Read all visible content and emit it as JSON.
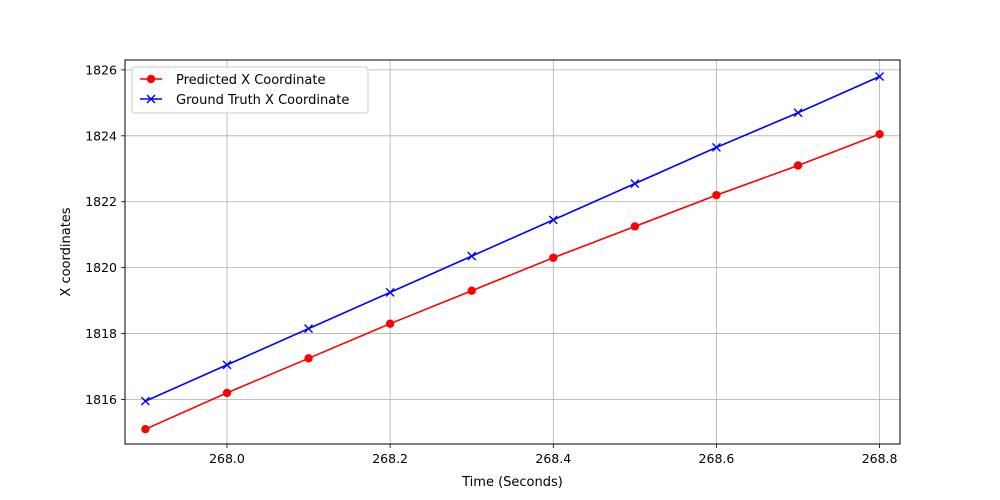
{
  "chart_data": {
    "type": "line",
    "title": "",
    "xlabel": "Time (Seconds)",
    "ylabel": "X coordinates",
    "xlim": [
      267.875,
      268.825
    ],
    "ylim": [
      1814.65,
      1826.3
    ],
    "xticks": [
      268.0,
      268.2,
      268.4,
      268.6,
      268.8
    ],
    "xtick_labels": [
      "268.0",
      "268.2",
      "268.4",
      "268.6",
      "268.8"
    ],
    "yticks": [
      1816,
      1818,
      1820,
      1822,
      1824,
      1826
    ],
    "ytick_labels": [
      "1816",
      "1818",
      "1820",
      "1822",
      "1824",
      "1826"
    ],
    "grid": true,
    "legend_position": "top-left",
    "x": [
      267.9,
      268.0,
      268.1,
      268.2,
      268.3,
      268.4,
      268.5,
      268.6,
      268.7,
      268.8
    ],
    "series": [
      {
        "name": "Predicted X Coordinate",
        "color": "#ff0000",
        "marker": "circle",
        "values": [
          1815.1,
          1816.2,
          1817.25,
          1818.3,
          1819.3,
          1820.3,
          1821.25,
          1822.2,
          1823.1,
          1824.05
        ]
      },
      {
        "name": "Ground Truth X Coordinate",
        "color": "#0000ff",
        "marker": "x",
        "values": [
          1815.95,
          1817.05,
          1818.15,
          1819.25,
          1820.35,
          1821.45,
          1822.55,
          1823.65,
          1824.7,
          1825.8
        ]
      }
    ]
  }
}
